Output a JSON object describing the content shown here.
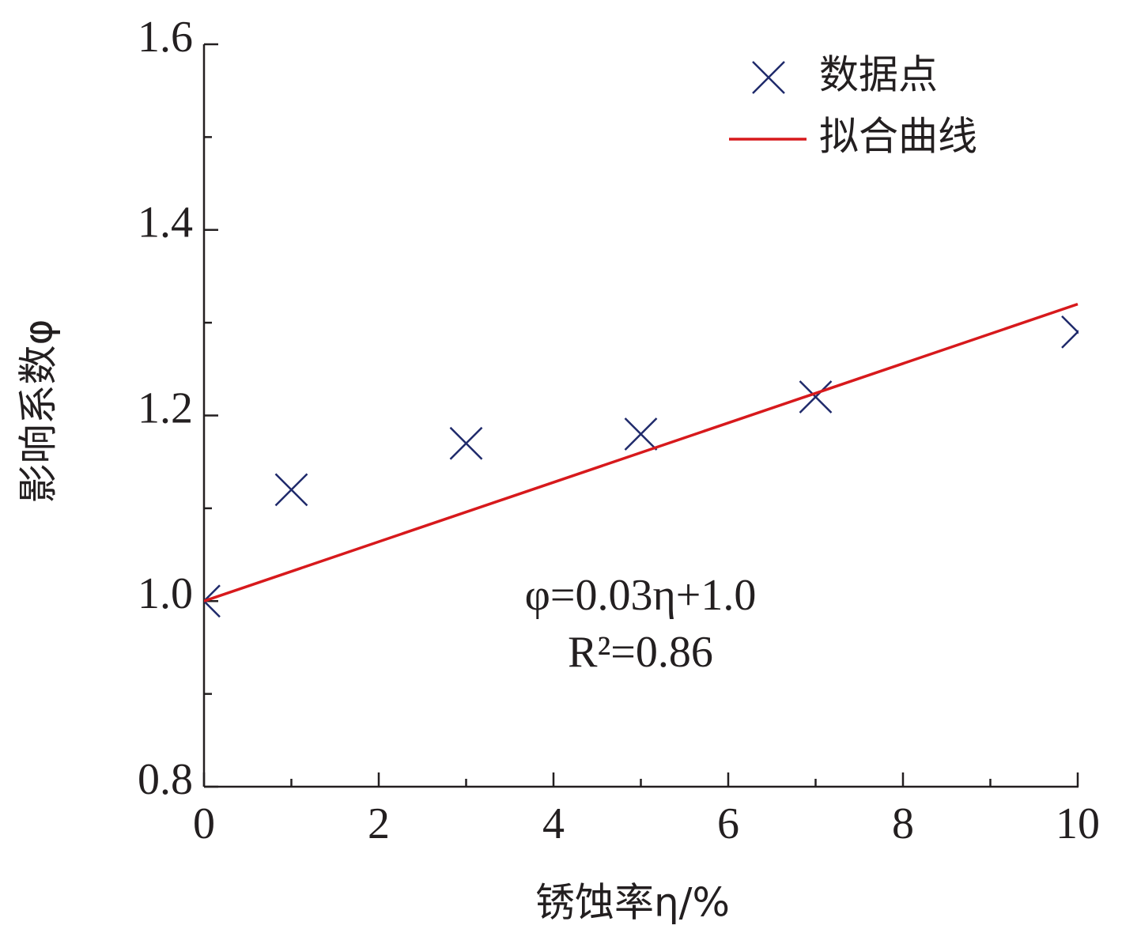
{
  "chart_data": {
    "type": "scatter",
    "xlabel": "锈蚀率η/%",
    "ylabel": "影响系数φ",
    "annotation": [
      "φ=0.03η+1.0",
      "R²=0.86"
    ],
    "xlim": [
      0,
      10
    ],
    "xticks": [
      0,
      2,
      4,
      6,
      8,
      10
    ],
    "xminorticks": [
      1,
      3,
      5,
      7,
      9
    ],
    "ylim": [
      0.8,
      1.6
    ],
    "yticks": [
      0.8,
      {
        "value": 1,
        "label": "1.0"
      },
      1.2,
      1.4,
      1.6
    ],
    "yminorticks": [
      0.9,
      1.1,
      1.3,
      1.5
    ],
    "legend": "upper right",
    "series": [
      {
        "name": "数据点",
        "type": "scatter",
        "color": "#1f2a6b",
        "x": [
          0,
          1,
          3,
          5,
          7,
          10
        ],
        "values": [
          1.0,
          1.12,
          1.17,
          1.18,
          1.22,
          1.29
        ]
      },
      {
        "name": "拟合曲线",
        "type": "line",
        "color": "#d7191c",
        "x": [
          0,
          10
        ],
        "values": [
          1.0,
          1.32
        ]
      }
    ]
  }
}
